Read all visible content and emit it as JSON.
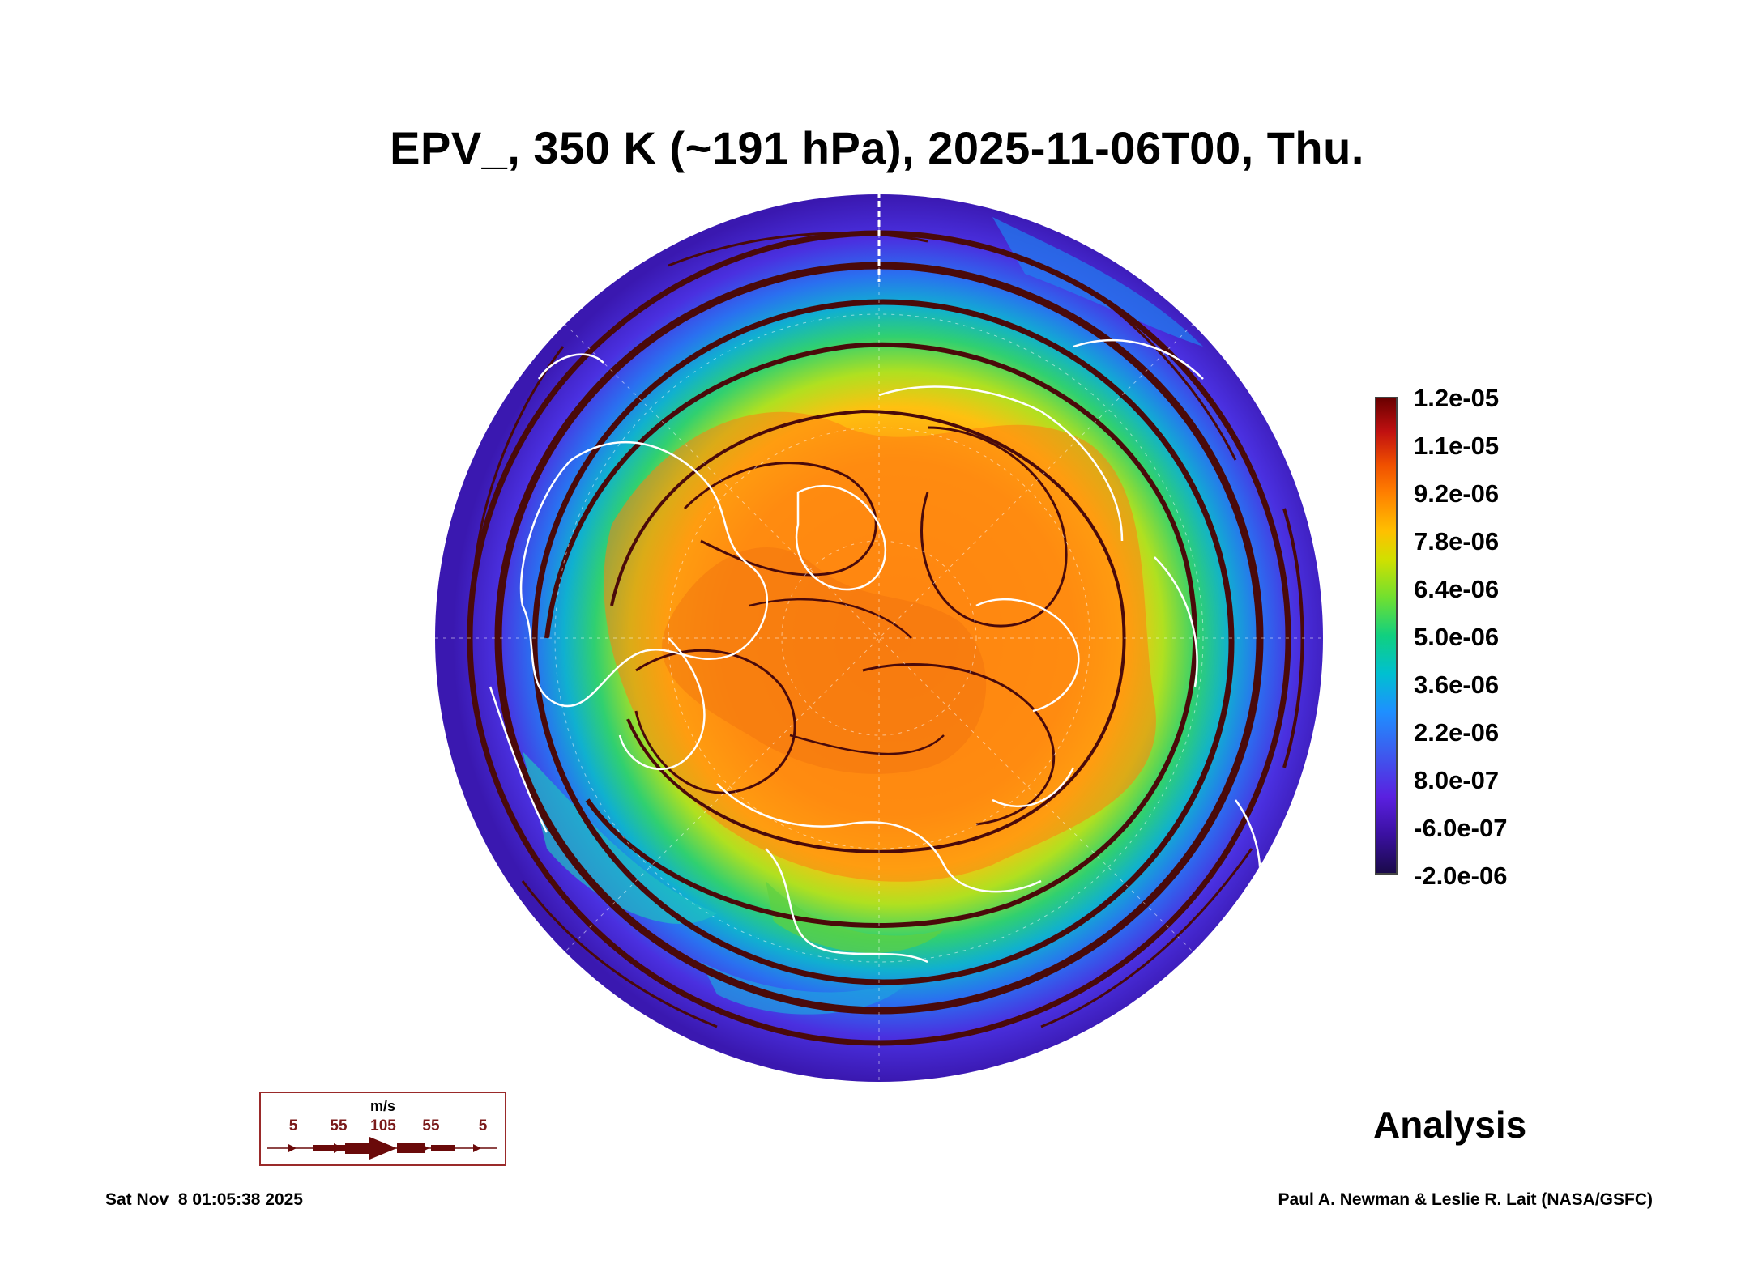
{
  "title": "EPV_, 350 K (~191 hPa), 2025-11-06T00, Thu.",
  "map": {
    "projection": "polar stereographic (north pole)",
    "field": "EPV_",
    "palette": [
      "#1a0a4a",
      "#3a10a0",
      "#5a20e0",
      "#1e90ff",
      "#00c0d0",
      "#10d080",
      "#d0e000",
      "#ffc000",
      "#ff8000",
      "#c01010",
      "#6a0000"
    ],
    "coastline_color": "#ffffff",
    "streamline_color": "#4a0a0a"
  },
  "colorbar": {
    "labels": [
      "1.2e-05",
      "1.1e-05",
      "9.2e-06",
      "7.8e-06",
      "6.4e-06",
      "5.0e-06",
      "3.6e-06",
      "2.2e-06",
      "8.0e-07",
      "-6.0e-07",
      "-2.0e-06"
    ]
  },
  "wind_legend": {
    "unit": "m/s",
    "values": [
      "5",
      "55",
      "105",
      "55",
      "5"
    ]
  },
  "analysis_label": "Analysis",
  "footer": {
    "timestamp": "Sat Nov  8 01:05:38 2025",
    "credit": "Paul A. Newman & Leslie R. Lait (NASA/GSFC)"
  }
}
